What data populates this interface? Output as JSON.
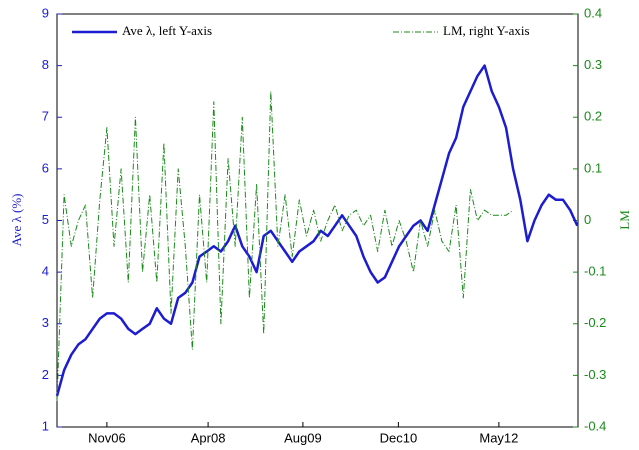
{
  "chart_data": {
    "type": "line",
    "ylabel": "Ave λ (%)",
    "y2label": "LM",
    "legend": "top",
    "xlim": [
      2006.13,
      2013.44
    ],
    "xticks": [
      {
        "value": 2006.83,
        "label": "Nov06"
      },
      {
        "value": 2008.25,
        "label": "Apr08"
      },
      {
        "value": 2009.58,
        "label": "Aug09"
      },
      {
        "value": 2010.92,
        "label": "Dec10"
      },
      {
        "value": 2012.33,
        "label": "May12"
      }
    ],
    "ylim": [
      1,
      9
    ],
    "yticks": [
      1,
      2,
      3,
      4,
      5,
      6,
      7,
      8,
      9
    ],
    "y2lim": [
      -0.4,
      0.4
    ],
    "y2ticks": [
      -0.4,
      -0.3,
      -0.2,
      -0.1,
      0,
      0.1,
      0.2,
      0.3,
      0.4
    ],
    "series": [
      {
        "name": "Ave λ, left Y-axis",
        "color": "#1c1cd0",
        "axis": "y",
        "style": "solid",
        "x": [
          2006.13,
          2006.23,
          2006.33,
          2006.43,
          2006.53,
          2006.63,
          2006.73,
          2006.83,
          2006.93,
          2007.03,
          2007.13,
          2007.23,
          2007.33,
          2007.43,
          2007.53,
          2007.63,
          2007.73,
          2007.83,
          2007.93,
          2008.03,
          2008.13,
          2008.23,
          2008.33,
          2008.43,
          2008.53,
          2008.63,
          2008.73,
          2008.83,
          2008.93,
          2009.03,
          2009.13,
          2009.23,
          2009.33,
          2009.43,
          2009.53,
          2009.63,
          2009.73,
          2009.83,
          2009.93,
          2010.03,
          2010.13,
          2010.23,
          2010.33,
          2010.43,
          2010.53,
          2010.63,
          2010.73,
          2010.83,
          2010.93,
          2011.03,
          2011.13,
          2011.23,
          2011.33,
          2011.43,
          2011.53,
          2011.63,
          2011.73,
          2011.83,
          2011.93,
          2012.03,
          2012.13,
          2012.23,
          2012.33,
          2012.43,
          2012.53,
          2012.63,
          2012.73,
          2012.83,
          2012.93,
          2013.03,
          2013.13,
          2013.23,
          2013.33,
          2013.43
        ],
        "values": [
          1.6,
          2.1,
          2.4,
          2.6,
          2.7,
          2.9,
          3.1,
          3.2,
          3.2,
          3.1,
          2.9,
          2.8,
          2.9,
          3.0,
          3.3,
          3.1,
          3.0,
          3.5,
          3.6,
          3.8,
          4.3,
          4.4,
          4.5,
          4.4,
          4.6,
          4.9,
          4.5,
          4.3,
          4.0,
          4.7,
          4.8,
          4.6,
          4.4,
          4.2,
          4.4,
          4.5,
          4.6,
          4.8,
          4.7,
          4.9,
          5.1,
          4.9,
          4.7,
          4.3,
          4.0,
          3.8,
          3.9,
          4.2,
          4.5,
          4.7,
          4.9,
          5.0,
          4.8,
          5.3,
          5.8,
          6.3,
          6.6,
          7.2,
          7.5,
          7.8,
          8.0,
          7.5,
          7.2,
          6.8,
          6.0,
          5.4,
          4.6,
          5.0,
          5.3,
          5.5,
          5.4,
          5.4,
          5.2,
          4.9
        ]
      },
      {
        "name": "LM, right Y-axis",
        "color": "#1a8a1a",
        "axis": "y2",
        "style": "dashdot",
        "x": [
          2006.13,
          2006.23,
          2006.33,
          2006.43,
          2006.53,
          2006.63,
          2006.73,
          2006.83,
          2006.93,
          2007.03,
          2007.13,
          2007.23,
          2007.33,
          2007.43,
          2007.53,
          2007.63,
          2007.73,
          2007.83,
          2007.93,
          2008.03,
          2008.13,
          2008.23,
          2008.33,
          2008.43,
          2008.53,
          2008.63,
          2008.73,
          2008.83,
          2008.93,
          2009.03,
          2009.13,
          2009.23,
          2009.33,
          2009.43,
          2009.53,
          2009.63,
          2009.73,
          2009.83,
          2009.93,
          2010.03,
          2010.13,
          2010.23,
          2010.33,
          2010.43,
          2010.53,
          2010.63,
          2010.73,
          2010.83,
          2010.93,
          2011.03,
          2011.13,
          2011.23,
          2011.33,
          2011.43,
          2011.53,
          2011.63,
          2011.73,
          2011.83,
          2011.93,
          2012.03,
          2012.13,
          2012.23,
          2012.33,
          2012.43,
          2012.53
        ],
        "values": [
          -0.35,
          0.05,
          -0.05,
          0.0,
          0.03,
          -0.15,
          0.04,
          0.18,
          -0.05,
          0.1,
          -0.12,
          0.2,
          -0.1,
          0.05,
          -0.12,
          0.15,
          -0.18,
          0.1,
          -0.05,
          -0.25,
          0.05,
          -0.12,
          0.23,
          -0.2,
          0.12,
          -0.05,
          0.2,
          -0.15,
          0.07,
          -0.22,
          0.25,
          -0.05,
          0.05,
          -0.07,
          0.04,
          -0.03,
          0.02,
          -0.04,
          0.0,
          0.03,
          -0.02,
          0.01,
          0.02,
          -0.01,
          0.01,
          -0.06,
          0.02,
          -0.05,
          0.0,
          -0.04,
          -0.1,
          0.0,
          -0.05,
          0.02,
          -0.04,
          -0.06,
          0.03,
          -0.15,
          0.06,
          0.0,
          0.02,
          0.01,
          0.01,
          0.01,
          0.02
        ]
      }
    ]
  }
}
